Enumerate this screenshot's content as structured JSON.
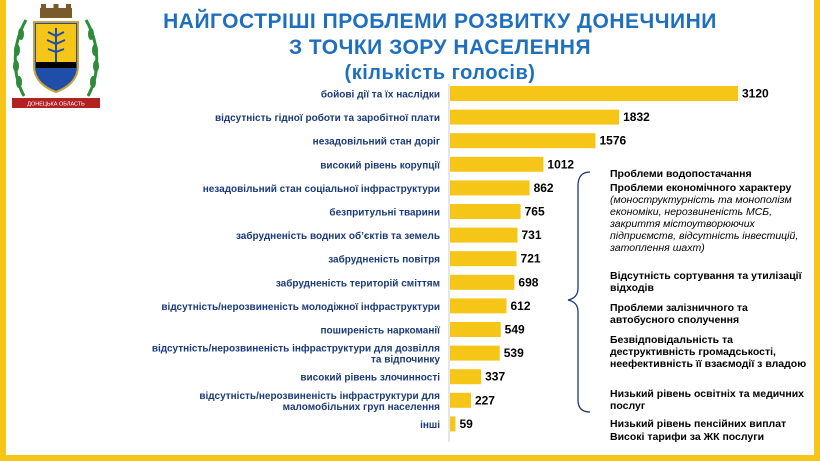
{
  "header": {
    "title_line1": "НАЙГОСТРІШІ ПРОБЛЕМИ РОЗВИТКУ ДОНЕЧЧИНИ",
    "title_line2": "З ТОЧКИ ЗОРУ НАСЕЛЕННЯ",
    "title_line3": "(кількість  голосів)",
    "emblem_ribbon": "ДОНЕЦЬКА ОБЛАСТЬ"
  },
  "colors": {
    "bar": "#f5c518",
    "title": "#1f6fbf",
    "label": "#1a3a7a",
    "frame": "#f5c518"
  },
  "chart_data": {
    "type": "bar",
    "orientation": "horizontal",
    "categories": [
      "бойові дії та їх наслідки",
      "відсутність гідної роботи та заробітної плати",
      "незадовільний стан доріг",
      "високий рівень корупції",
      "незадовільний стан соціальної інфраструктури",
      "безпритульні тварини",
      "забрудненість водних об’єктів та земель",
      "забрудненість повітря",
      "забрудненість територій сміттям",
      "відсутність/нерозвиненість молодіжної інфраструктури",
      "поширеність наркоманії",
      "відсутність/нерозвиненість інфраструктури для дозвілля та відпочинку",
      "високий рівень злочинності",
      "відсутність/нерозвиненість інфраструктури для маломобільних груп населення",
      "інші"
    ],
    "values": [
      3120,
      1832,
      1576,
      1012,
      862,
      765,
      731,
      721,
      698,
      612,
      549,
      539,
      337,
      227,
      59
    ],
    "xlim": [
      0,
      3200
    ],
    "grid": false,
    "legend": "none"
  },
  "other_issues": {
    "n1": "Проблеми водопостачання",
    "n2a": "Проблеми економічного характеру",
    "n2b": "(моноструктурність та монополізм економіки, нерозвиненість МСБ, закриття містоутворюючих підприємств, відсутність інвестицій, затоплення шахт)",
    "n3": "Відсутність сортування та утилізації відходів",
    "n4": "Проблеми залізничного та автобусного сполучення",
    "n5": "Безвідповідальність та деструктивність громадськості, неефективність її взаємодії з владою",
    "n6": "Низький рівень освітніх та медичних послуг",
    "n7": "Низький рівень пенсійних виплат",
    "n8": "Високі тарифи за ЖК послуги"
  }
}
